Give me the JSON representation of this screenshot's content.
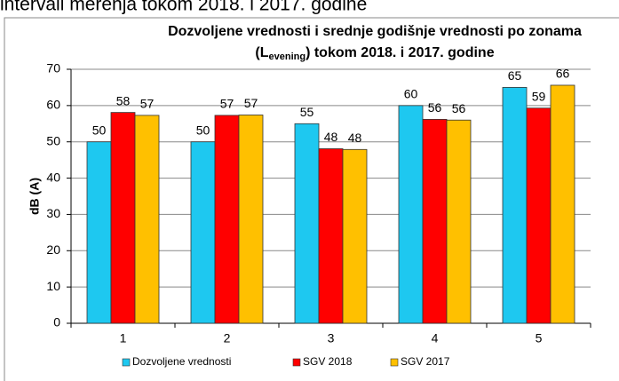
{
  "header_text": "intervali merenja tokom 2018. i 2017. godine",
  "chart_data": {
    "type": "bar",
    "title_line1": "Dozvoljene vrednosti i srednje godišnje vrednosti po zonama",
    "title_line2": [
      "(L",
      "evening",
      ") tokom 2018. i 2017. godine"
    ],
    "y_label": "dB (A)",
    "categories": [
      "1",
      "2",
      "3",
      "4",
      "5"
    ],
    "series": [
      {
        "name": "Dozvoljene vrednosti",
        "color": "#1ec8f0",
        "values": [
          50,
          50,
          55,
          60,
          65
        ]
      },
      {
        "name": "SGV 2018",
        "color": "#ff0000",
        "values": [
          58.1,
          57.3,
          48.1,
          56.2,
          59.3
        ],
        "value_labels": [
          "58",
          "57",
          "48",
          "56",
          "59"
        ]
      },
      {
        "name": "SGV 2017",
        "color": "#ffc000",
        "values": [
          57.3,
          57.4,
          47.9,
          56,
          65.6
        ],
        "value_labels": [
          "57",
          "57",
          "48",
          "56",
          "66"
        ]
      }
    ],
    "ylim": [
      0,
      70
    ],
    "yticks": [
      0,
      10,
      20,
      30,
      40,
      50,
      60,
      70
    ],
    "grid": true,
    "legend": "bottom"
  }
}
